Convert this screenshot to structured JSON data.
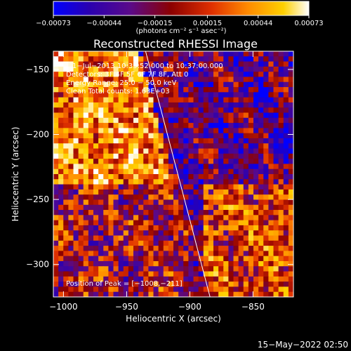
{
  "chart_data": {
    "type": "heatmap",
    "title": "Reconstructed RHESSI Image",
    "xlabel": "Heliocentric X (arcsec)",
    "ylabel": "Heliocentric Y (arcsec)",
    "xlim": [
      -1008,
      -818
    ],
    "ylim": [
      -325,
      -136
    ],
    "xticks": [
      -1000,
      -950,
      -900,
      -850
    ],
    "xtick_labels": [
      "−1000",
      "−950",
      "−900",
      "−850"
    ],
    "yticks": [
      -150,
      -200,
      -250,
      -300
    ],
    "ytick_labels": [
      "−150",
      "−200",
      "−250",
      "−300"
    ],
    "colorbar": {
      "min": -0.00073,
      "max": 0.00073,
      "ticks": [
        -0.00073,
        -0.00044,
        -0.00015,
        0.00015,
        0.00044,
        0.00073
      ],
      "tick_labels": [
        "−0.00073",
        "−0.00044",
        "−0.00015",
        "0.00015",
        "0.00044",
        "0.00073"
      ],
      "unit_label": "(photons cm⁻² s⁻¹ asec⁻²)",
      "colormap": [
        "#0000ff",
        "#2a00b0",
        "#5a0a8a",
        "#8c0000",
        "#e03000",
        "#ff8a00",
        "#ffd000",
        "#ffffff"
      ]
    },
    "annotations": [
      "1−Jul−2013 10:35:52.000 to 10:37:00.000",
      "Detectors: 3F 4F 5F 6F 7F 8F, Att 0",
      "Energy Range: 25.0 − 50.0 keV",
      "Clean    Total counts: 1.63E+03"
    ],
    "peak_label": "Position of Peak = [−1008,−211]",
    "peak": [
      -1008,
      -211
    ],
    "limb_line": [
      [
        -935,
        -136
      ],
      [
        -884,
        -325
      ]
    ],
    "grid": false
  },
  "footer_date": "15−May−2022 02:50"
}
